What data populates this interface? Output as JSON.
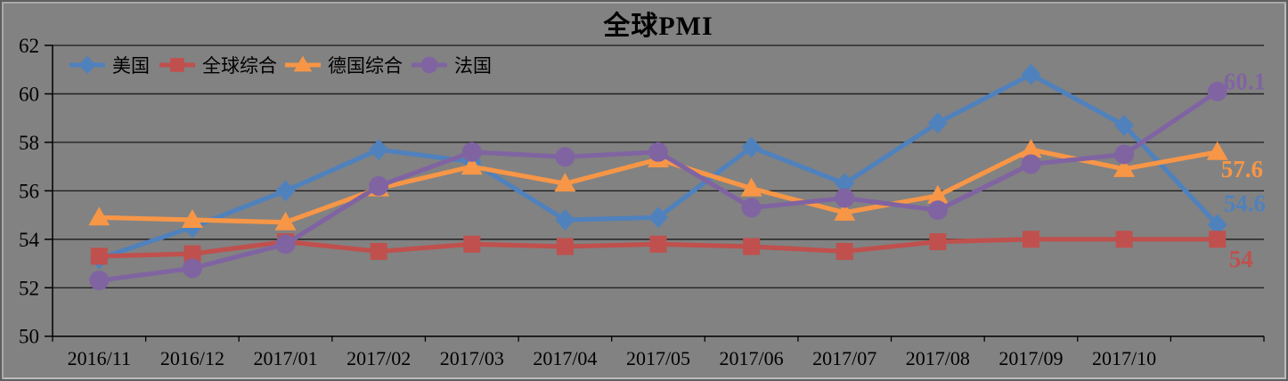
{
  "title": "全球PMI",
  "chart_data": {
    "type": "line",
    "title": "全球PMI",
    "xlabel": "",
    "ylabel": "",
    "ylim": [
      50,
      62
    ],
    "y_ticks": [
      50,
      52,
      54,
      56,
      58,
      60,
      62
    ],
    "grid": true,
    "legend_position": "top-left",
    "background_color": "#828282",
    "gridline_color": "#1a1a1a",
    "categories": [
      "2016/11",
      "2016/12",
      "2017/01",
      "2017/02",
      "2017/03",
      "2017/04",
      "2017/05",
      "2017/06",
      "2017/07",
      "2017/08",
      "2017/09",
      "2017/10",
      ""
    ],
    "series": [
      {
        "id": "us",
        "name": "美国",
        "color": "#4F81BD",
        "marker": "diamond",
        "values": [
          53.2,
          54.5,
          56.0,
          57.7,
          57.2,
          54.8,
          54.9,
          57.8,
          56.3,
          58.8,
          60.8,
          58.7,
          54.6
        ],
        "end_label": "54.6"
      },
      {
        "id": "global",
        "name": "全球综合",
        "color": "#C0504D",
        "marker": "square",
        "values": [
          53.3,
          53.4,
          53.9,
          53.5,
          53.8,
          53.7,
          53.8,
          53.7,
          53.5,
          53.9,
          54.0,
          54.0,
          54.0
        ],
        "end_label": "54"
      },
      {
        "id": "germany",
        "name": "德国综合",
        "color": "#F79646",
        "marker": "triangle",
        "values": [
          54.9,
          54.8,
          54.7,
          56.1,
          57.0,
          56.3,
          57.3,
          56.1,
          55.1,
          55.8,
          57.7,
          56.9,
          57.6
        ],
        "end_label": "57.6"
      },
      {
        "id": "france",
        "name": "法国",
        "color": "#8064A2",
        "marker": "circle",
        "values": [
          52.3,
          52.8,
          53.8,
          56.2,
          57.6,
          57.4,
          57.6,
          55.3,
          55.7,
          55.2,
          57.1,
          57.5,
          60.1
        ],
        "end_label": "60.1"
      }
    ]
  }
}
